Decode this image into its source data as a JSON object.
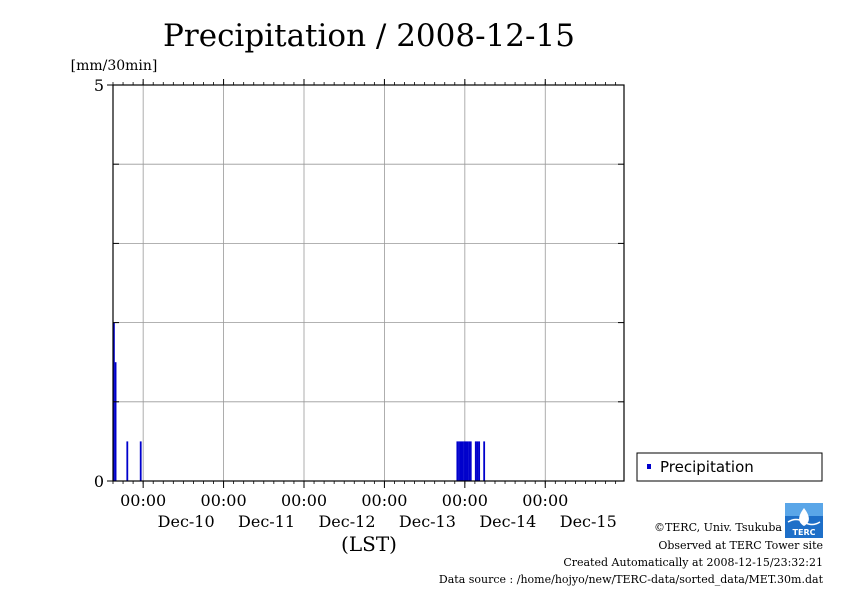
{
  "chart_data": {
    "type": "bar",
    "title": "Precipitation / 2008-12-15",
    "ylabel": "[mm/30min]",
    "xlabel": "(LST)",
    "ylim": [
      0,
      5
    ],
    "yticks": [
      "0",
      "5"
    ],
    "x_start": "2008-12-09 15:00",
    "x_end": "2008-12-15 23:30",
    "x_ticks": [
      {
        "time": "2008-12-10 00:00",
        "label": "00:00",
        "date_label": "Dec-10"
      },
      {
        "time": "2008-12-11 00:00",
        "label": "00:00",
        "date_label": "Dec-11"
      },
      {
        "time": "2008-12-12 00:00",
        "label": "00:00",
        "date_label": "Dec-12"
      },
      {
        "time": "2008-12-13 00:00",
        "label": "00:00",
        "date_label": "Dec-13"
      },
      {
        "time": "2008-12-14 00:00",
        "label": "00:00",
        "date_label": "Dec-14"
      },
      {
        "time": "2008-12-15 00:00",
        "label": "00:00",
        "date_label": "Dec-15"
      }
    ],
    "grid": true,
    "legend_position": "bottom-right",
    "series": [
      {
        "name": "Precipitation",
        "color": "#0000cc",
        "points": [
          {
            "x": "2008-12-09 15:00",
            "y": 2.0
          },
          {
            "x": "2008-12-09 15:30",
            "y": 1.5
          },
          {
            "x": "2008-12-09 19:00",
            "y": 0.5
          },
          {
            "x": "2008-12-09 23:00",
            "y": 0.5
          },
          {
            "x": "2008-12-13 21:30",
            "y": 0.5
          },
          {
            "x": "2008-12-13 22:00",
            "y": 0.5
          },
          {
            "x": "2008-12-13 22:30",
            "y": 0.5
          },
          {
            "x": "2008-12-13 23:00",
            "y": 0.5
          },
          {
            "x": "2008-12-13 23:30",
            "y": 0.5
          },
          {
            "x": "2008-12-14 00:00",
            "y": 0.5
          },
          {
            "x": "2008-12-14 00:30",
            "y": 0.5
          },
          {
            "x": "2008-12-14 01:00",
            "y": 0.5
          },
          {
            "x": "2008-12-14 01:30",
            "y": 0.5
          },
          {
            "x": "2008-12-14 03:00",
            "y": 0.5
          },
          {
            "x": "2008-12-14 03:30",
            "y": 0.5
          },
          {
            "x": "2008-12-14 04:00",
            "y": 0.5
          },
          {
            "x": "2008-12-14 05:30",
            "y": 0.5
          }
        ]
      }
    ]
  },
  "credits": {
    "copyright": "©TERC, Univ. Tsukuba",
    "observed": "Observed at TERC Tower site",
    "created": "Created Automatically at 2008-12-15/23:32:21",
    "source": "Data source : /home/hojyo/new/TERC-data/sorted_data/MET.30m.dat",
    "logo_text": "TERC"
  }
}
